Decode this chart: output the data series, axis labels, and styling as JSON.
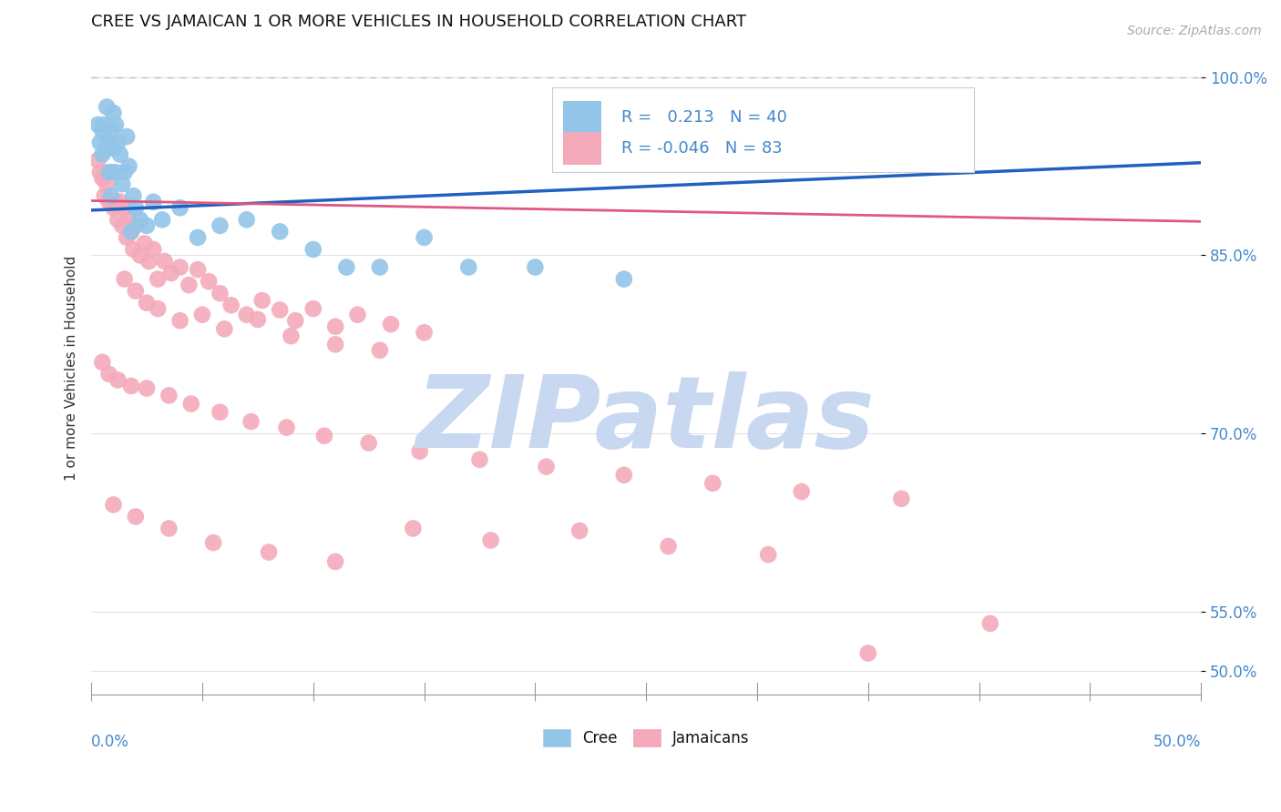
{
  "title": "CREE VS JAMAICAN 1 OR MORE VEHICLES IN HOUSEHOLD CORRELATION CHART",
  "source": "Source: ZipAtlas.com",
  "ylabel": "1 or more Vehicles in Household",
  "yticks": [
    "100.0%",
    "85.0%",
    "70.0%",
    "55.0%",
    "50.0%"
  ],
  "ytick_vals": [
    1.0,
    0.85,
    0.7,
    0.55,
    0.5
  ],
  "xrange": [
    0.0,
    0.5
  ],
  "yrange": [
    0.48,
    1.03
  ],
  "cree_R": 0.213,
  "cree_N": 40,
  "jamaican_R": -0.046,
  "jamaican_N": 83,
  "cree_color": "#92C5E8",
  "jamaican_color": "#F4AABB",
  "cree_line_color": "#2060C0",
  "jamaican_line_color": "#E05880",
  "dashed_line_color": "#BBBBBB",
  "background": "#FFFFFF",
  "watermark_color": "#C8D8F0",
  "cree_x": [
    0.003,
    0.004,
    0.005,
    0.005,
    0.006,
    0.007,
    0.007,
    0.008,
    0.008,
    0.009,
    0.009,
    0.01,
    0.01,
    0.011,
    0.011,
    0.012,
    0.013,
    0.014,
    0.015,
    0.016,
    0.017,
    0.018,
    0.019,
    0.02,
    0.022,
    0.025,
    0.028,
    0.032,
    0.04,
    0.048,
    0.058,
    0.07,
    0.085,
    0.1,
    0.115,
    0.13,
    0.15,
    0.17,
    0.2,
    0.24
  ],
  "cree_y": [
    0.96,
    0.945,
    0.955,
    0.935,
    0.96,
    0.94,
    0.975,
    0.945,
    0.92,
    0.955,
    0.9,
    0.94,
    0.97,
    0.96,
    0.92,
    0.945,
    0.935,
    0.91,
    0.92,
    0.95,
    0.925,
    0.87,
    0.9,
    0.89,
    0.88,
    0.875,
    0.895,
    0.88,
    0.89,
    0.865,
    0.875,
    0.88,
    0.87,
    0.855,
    0.84,
    0.84,
    0.865,
    0.84,
    0.84,
    0.83
  ],
  "jamaican_x": [
    0.003,
    0.004,
    0.005,
    0.006,
    0.007,
    0.008,
    0.009,
    0.01,
    0.011,
    0.012,
    0.013,
    0.014,
    0.015,
    0.016,
    0.017,
    0.018,
    0.019,
    0.02,
    0.022,
    0.024,
    0.026,
    0.028,
    0.03,
    0.033,
    0.036,
    0.04,
    0.044,
    0.048,
    0.053,
    0.058,
    0.063,
    0.07,
    0.077,
    0.085,
    0.092,
    0.1,
    0.11,
    0.12,
    0.135,
    0.15,
    0.015,
    0.02,
    0.025,
    0.03,
    0.04,
    0.05,
    0.06,
    0.075,
    0.09,
    0.11,
    0.13,
    0.005,
    0.008,
    0.012,
    0.018,
    0.025,
    0.035,
    0.045,
    0.058,
    0.072,
    0.088,
    0.105,
    0.125,
    0.148,
    0.175,
    0.205,
    0.24,
    0.28,
    0.32,
    0.365,
    0.01,
    0.02,
    0.035,
    0.055,
    0.08,
    0.11,
    0.145,
    0.18,
    0.22,
    0.26,
    0.305,
    0.35,
    0.405
  ],
  "jamaican_y": [
    0.93,
    0.92,
    0.915,
    0.9,
    0.91,
    0.895,
    0.92,
    0.89,
    0.895,
    0.88,
    0.895,
    0.875,
    0.89,
    0.865,
    0.88,
    0.87,
    0.855,
    0.875,
    0.85,
    0.86,
    0.845,
    0.855,
    0.83,
    0.845,
    0.835,
    0.84,
    0.825,
    0.838,
    0.828,
    0.818,
    0.808,
    0.8,
    0.812,
    0.804,
    0.795,
    0.805,
    0.79,
    0.8,
    0.792,
    0.785,
    0.83,
    0.82,
    0.81,
    0.805,
    0.795,
    0.8,
    0.788,
    0.796,
    0.782,
    0.775,
    0.77,
    0.76,
    0.75,
    0.745,
    0.74,
    0.738,
    0.732,
    0.725,
    0.718,
    0.71,
    0.705,
    0.698,
    0.692,
    0.685,
    0.678,
    0.672,
    0.665,
    0.658,
    0.651,
    0.645,
    0.64,
    0.63,
    0.62,
    0.608,
    0.6,
    0.592,
    0.62,
    0.61,
    0.618,
    0.605,
    0.598,
    0.515,
    0.54
  ]
}
